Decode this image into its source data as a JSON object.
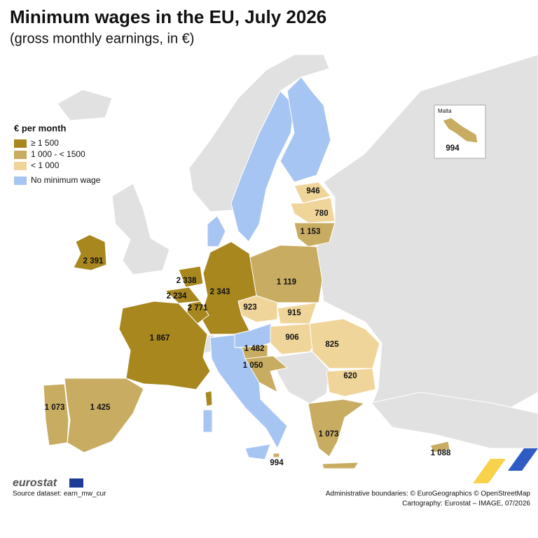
{
  "header": {
    "title": "Minimum wages in the EU, July 2026",
    "subtitle": "(gross monthly earnings, in €)"
  },
  "legend": {
    "title": "€ per month",
    "items": [
      {
        "label": "≥ 1 500",
        "color": "#a8871f"
      },
      {
        "label": "1 000 - < 1500",
        "color": "#c8ac62"
      },
      {
        "label": "< 1 000",
        "color": "#efd59a"
      },
      {
        "label": "No minimum wage",
        "color": "#a7c5f2"
      }
    ]
  },
  "regions": [
    {
      "label": "2 391"
    },
    {
      "label": "2 338"
    },
    {
      "label": "2 234"
    },
    {
      "label": "2 771"
    },
    {
      "label": "2 343"
    },
    {
      "label": "1 867"
    },
    {
      "label": "1 073"
    },
    {
      "label": "1 425"
    },
    {
      "label": "1 119"
    },
    {
      "label": "923"
    },
    {
      "label": "915"
    },
    {
      "label": "906"
    },
    {
      "label": "825"
    },
    {
      "label": "620"
    },
    {
      "label": "1 482"
    },
    {
      "label": "1 050"
    },
    {
      "label": "1 073"
    },
    {
      "label": "994"
    },
    {
      "label": "1 088"
    },
    {
      "label": "946"
    },
    {
      "label": "780"
    },
    {
      "label": "1 153"
    }
  ],
  "inset": {
    "title": "Malta",
    "label": "994"
  },
  "footer": {
    "logo": "eurostat",
    "source": "Source dataset: earn_mw_cur",
    "credits": [
      "Administrative boundaries: © EuroGeographics © OpenStreetMap",
      "Cartography: Eurostat – IMAGE, 07/2026"
    ]
  }
}
